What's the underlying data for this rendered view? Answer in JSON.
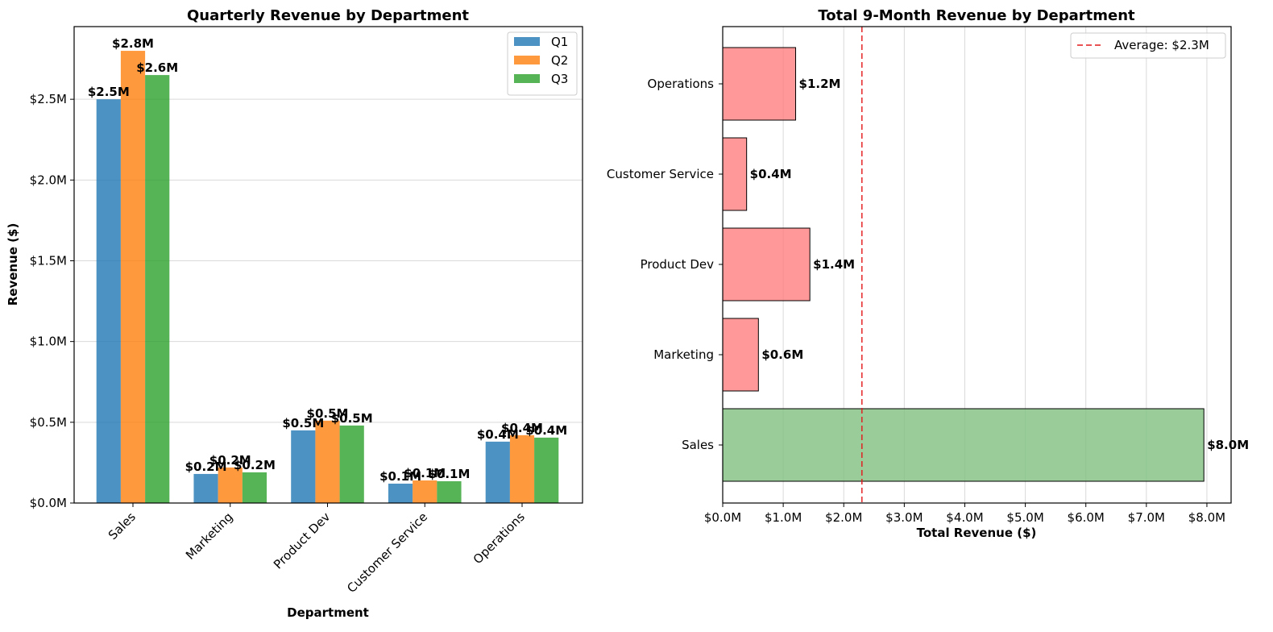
{
  "chart_data": [
    {
      "type": "bar",
      "title": "Quarterly Revenue by Department",
      "xlabel": "Department",
      "ylabel": "Revenue ($)",
      "categories": [
        "Sales",
        "Marketing",
        "Product Dev",
        "Customer Service",
        "Operations"
      ],
      "series": [
        {
          "name": "Q1",
          "color": "#1f77b4",
          "values": [
            2.5,
            0.18,
            0.45,
            0.12,
            0.38
          ],
          "labels": [
            "$2.5M",
            "$0.2M",
            "$0.5M",
            "$0.1M",
            "$0.4M"
          ]
        },
        {
          "name": "Q2",
          "color": "#ff7f0e",
          "values": [
            2.8,
            0.22,
            0.51,
            0.14,
            0.42
          ],
          "labels": [
            "$2.8M",
            "$0.2M",
            "$0.5M",
            "$0.1M",
            "$0.4M"
          ]
        },
        {
          "name": "Q3",
          "color": "#2ca02c",
          "values": [
            2.65,
            0.19,
            0.48,
            0.135,
            0.405
          ],
          "labels": [
            "$2.6M",
            "$0.2M",
            "$0.5M",
            "$0.1M",
            "$0.4M"
          ]
        }
      ],
      "ylim": [
        0,
        2.95
      ],
      "yticks": [
        {
          "value": 0,
          "label": "$0.0M"
        },
        {
          "value": 0.5,
          "label": "$0.5M"
        },
        {
          "value": 1.0,
          "label": "$1.0M"
        },
        {
          "value": 1.5,
          "label": "$1.5M"
        },
        {
          "value": 2.0,
          "label": "$2.0M"
        },
        {
          "value": 2.5,
          "label": "$2.5M"
        }
      ],
      "legend": "top-right",
      "grid": "y"
    },
    {
      "type": "bar",
      "orientation": "horizontal",
      "title": "Total 9-Month Revenue by Department",
      "xlabel": "Total Revenue ($)",
      "ylabel": "",
      "categories": [
        "Sales",
        "Marketing",
        "Product Dev",
        "Customer Service",
        "Operations"
      ],
      "values": [
        7.95,
        0.59,
        1.44,
        0.395,
        1.205
      ],
      "labels": [
        "$8.0M",
        "$0.6M",
        "$1.4M",
        "$0.4M",
        "$1.2M"
      ],
      "colors": [
        "#7fbf7f",
        "#ff7f7f",
        "#ff7f7f",
        "#ff7f7f",
        "#ff7f7f"
      ],
      "xlim": [
        0,
        8.4
      ],
      "xticks": [
        {
          "value": 0,
          "label": "$0.0M"
        },
        {
          "value": 1,
          "label": "$1.0M"
        },
        {
          "value": 2,
          "label": "$2.0M"
        },
        {
          "value": 3,
          "label": "$3.0M"
        },
        {
          "value": 4,
          "label": "$4.0M"
        },
        {
          "value": 5,
          "label": "$5.0M"
        },
        {
          "value": 6,
          "label": "$6.0M"
        },
        {
          "value": 7,
          "label": "$7.0M"
        },
        {
          "value": 8,
          "label": "$8.0M"
        }
      ],
      "average": {
        "value": 2.3,
        "label": "Average: $2.3M",
        "color": "#e31a1c"
      },
      "legend": "top-right",
      "grid": "x"
    }
  ]
}
